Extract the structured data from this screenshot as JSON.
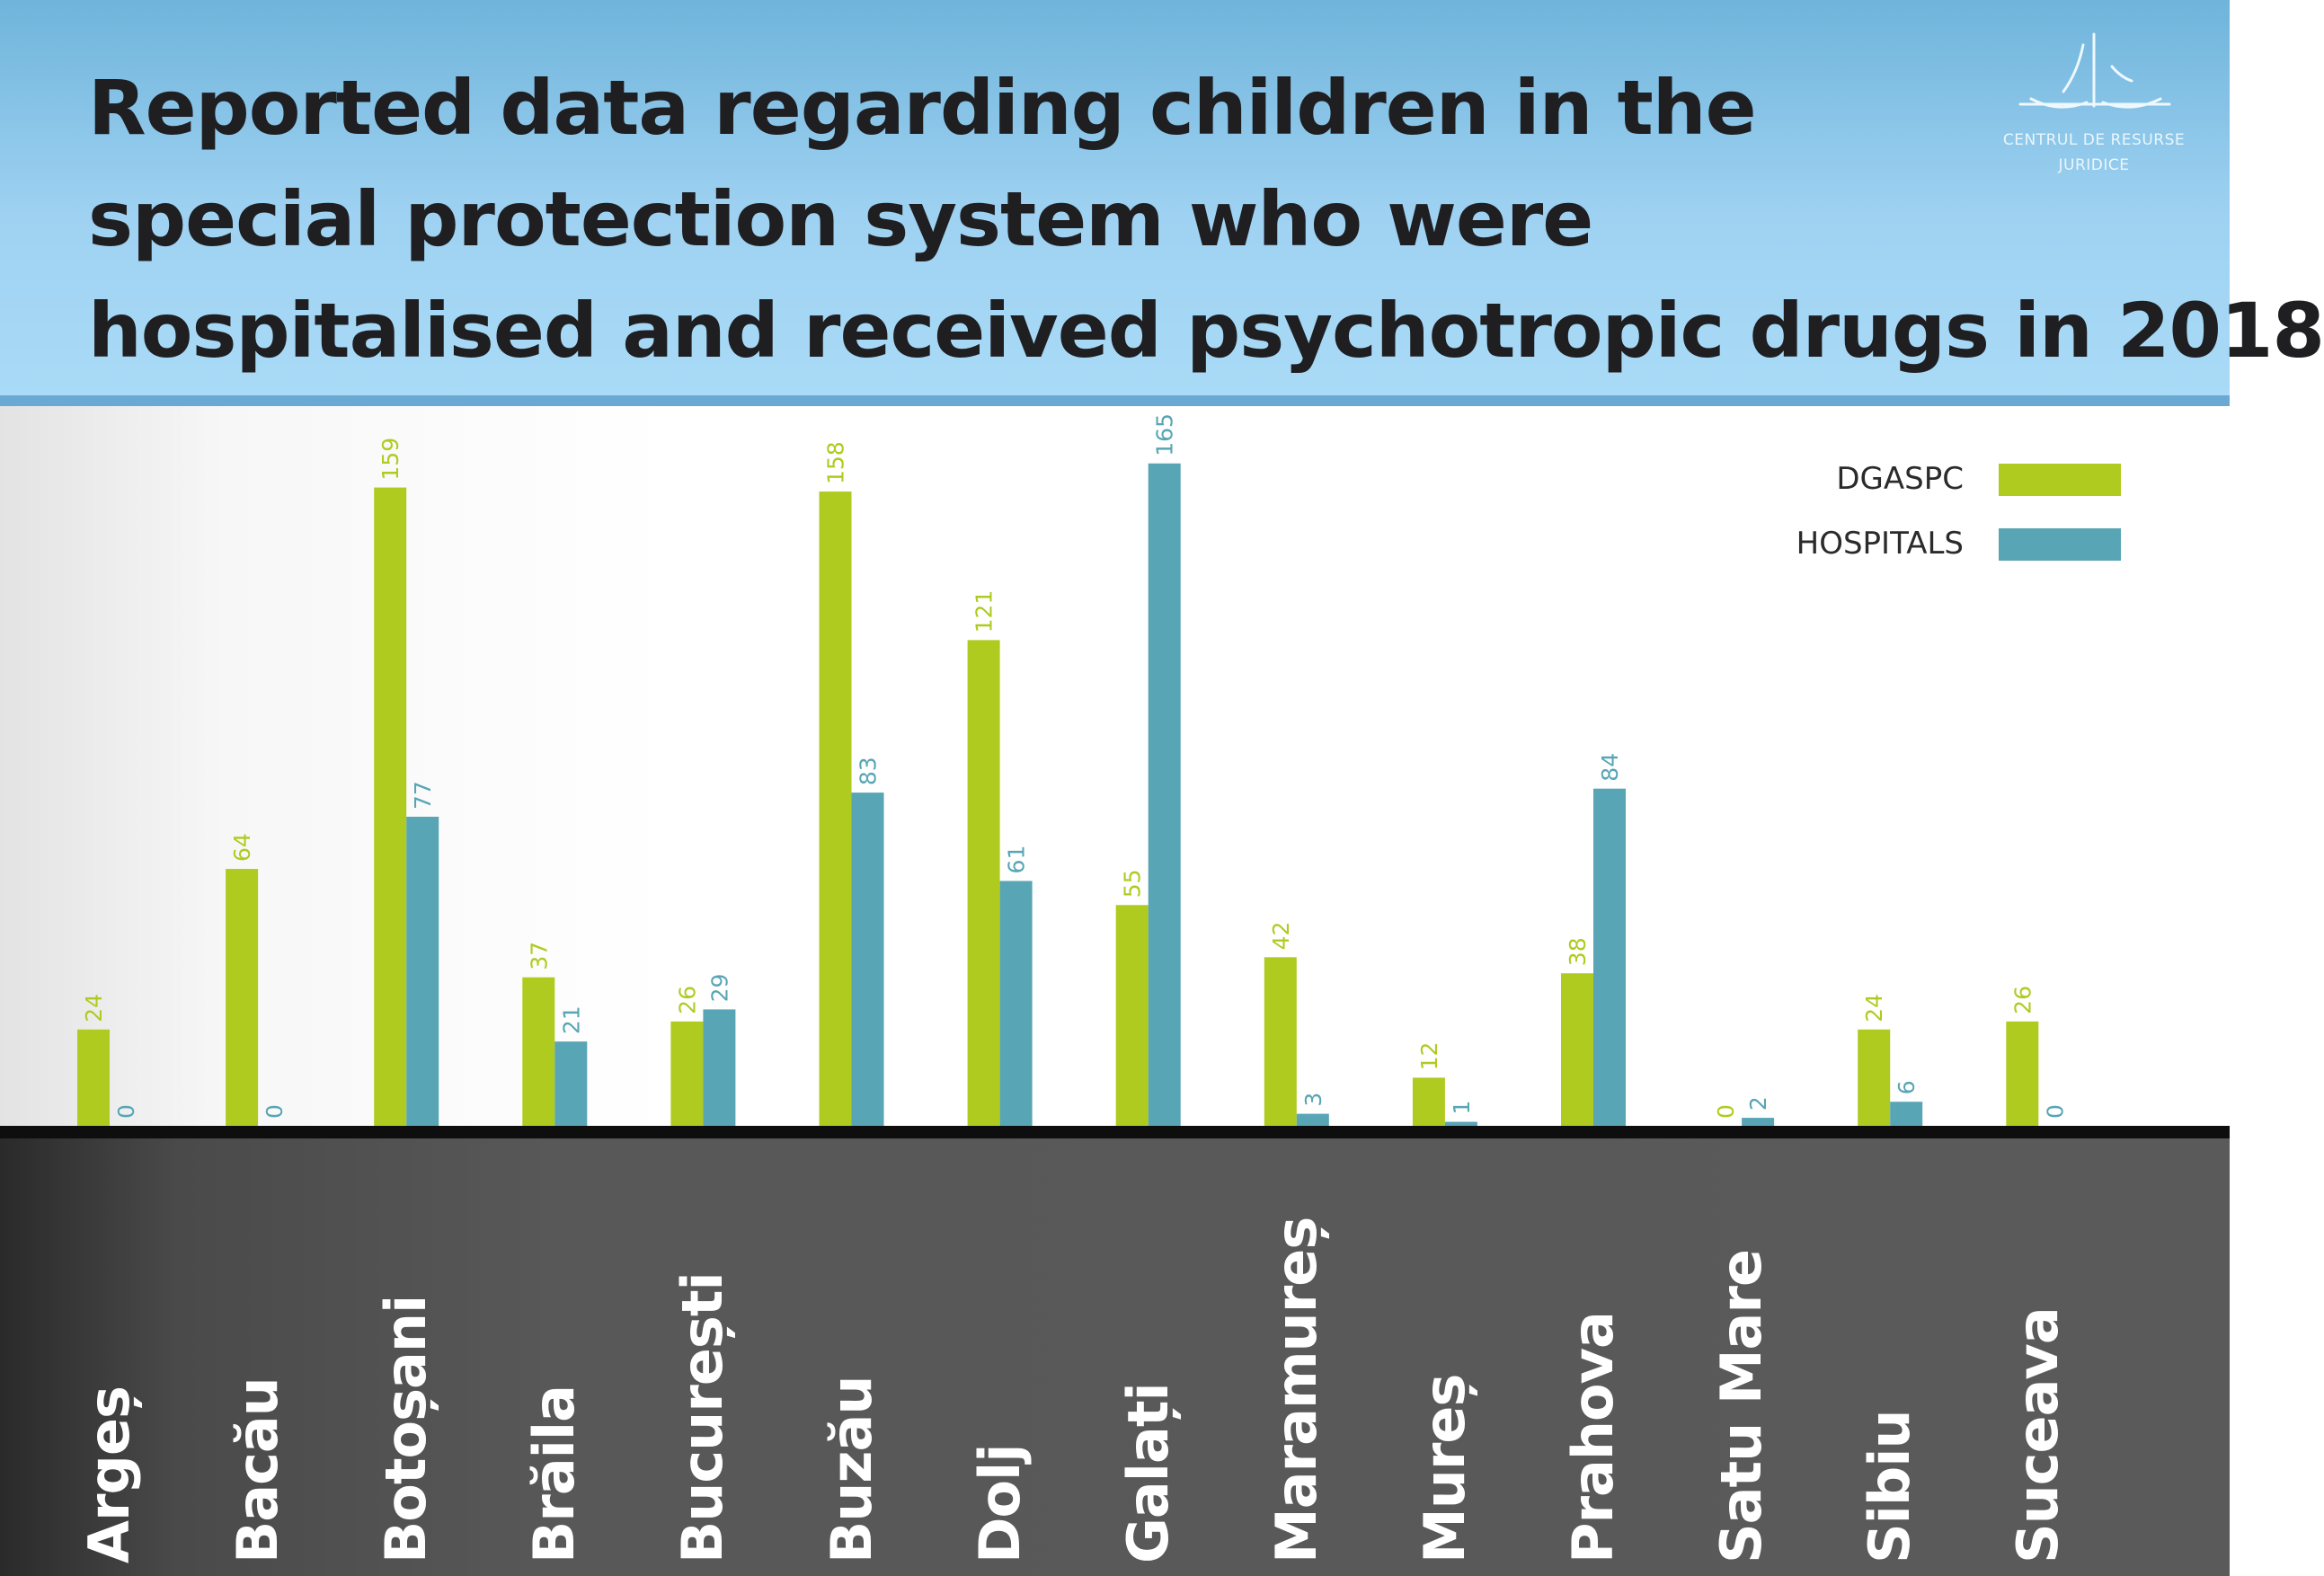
{
  "header": {
    "title_lines": [
      "Reported data regarding children in the",
      "special protection system who were",
      "hospitalised and received psychotropic drugs in 2018"
    ],
    "logo_text_lines": [
      "CENTRUL DE RESURSE",
      "JURIDICE"
    ],
    "logo_icon": "scales-logo-icon"
  },
  "colors": {
    "dgaspc": "#afcb1f",
    "hospitals": "#58a5b5",
    "header_bg": "#a3d7f5",
    "base_band": "#585858"
  },
  "legend": {
    "placement": "top-right",
    "items": [
      {
        "label": "DGASPC",
        "color": "#afcb1f"
      },
      {
        "label": "HOSPITALS",
        "color": "#58a5b5"
      }
    ]
  },
  "chart_data": {
    "type": "bar",
    "title": "Reported data regarding children in the special protection system who were hospitalised and received psychotropic drugs in 2018",
    "xlabel": "",
    "ylabel": "",
    "ylim": [
      0,
      170
    ],
    "grid": false,
    "categories": [
      "Argeș",
      "Bacău",
      "Botoșani",
      "Brăila",
      "București",
      "Buzău",
      "Dolj",
      "Galați",
      "Maramureș",
      "Mureș",
      "Prahova",
      "Satu Mare",
      "Sibiu",
      "Suceava"
    ],
    "series": [
      {
        "name": "DGASPC",
        "values": [
          24,
          64,
          159,
          37,
          26,
          158,
          121,
          55,
          42,
          12,
          38,
          0,
          24,
          26
        ]
      },
      {
        "name": "HOSPITALS",
        "values": [
          0,
          0,
          77,
          21,
          29,
          83,
          61,
          165,
          3,
          1,
          84,
          2,
          6,
          0
        ]
      }
    ]
  }
}
